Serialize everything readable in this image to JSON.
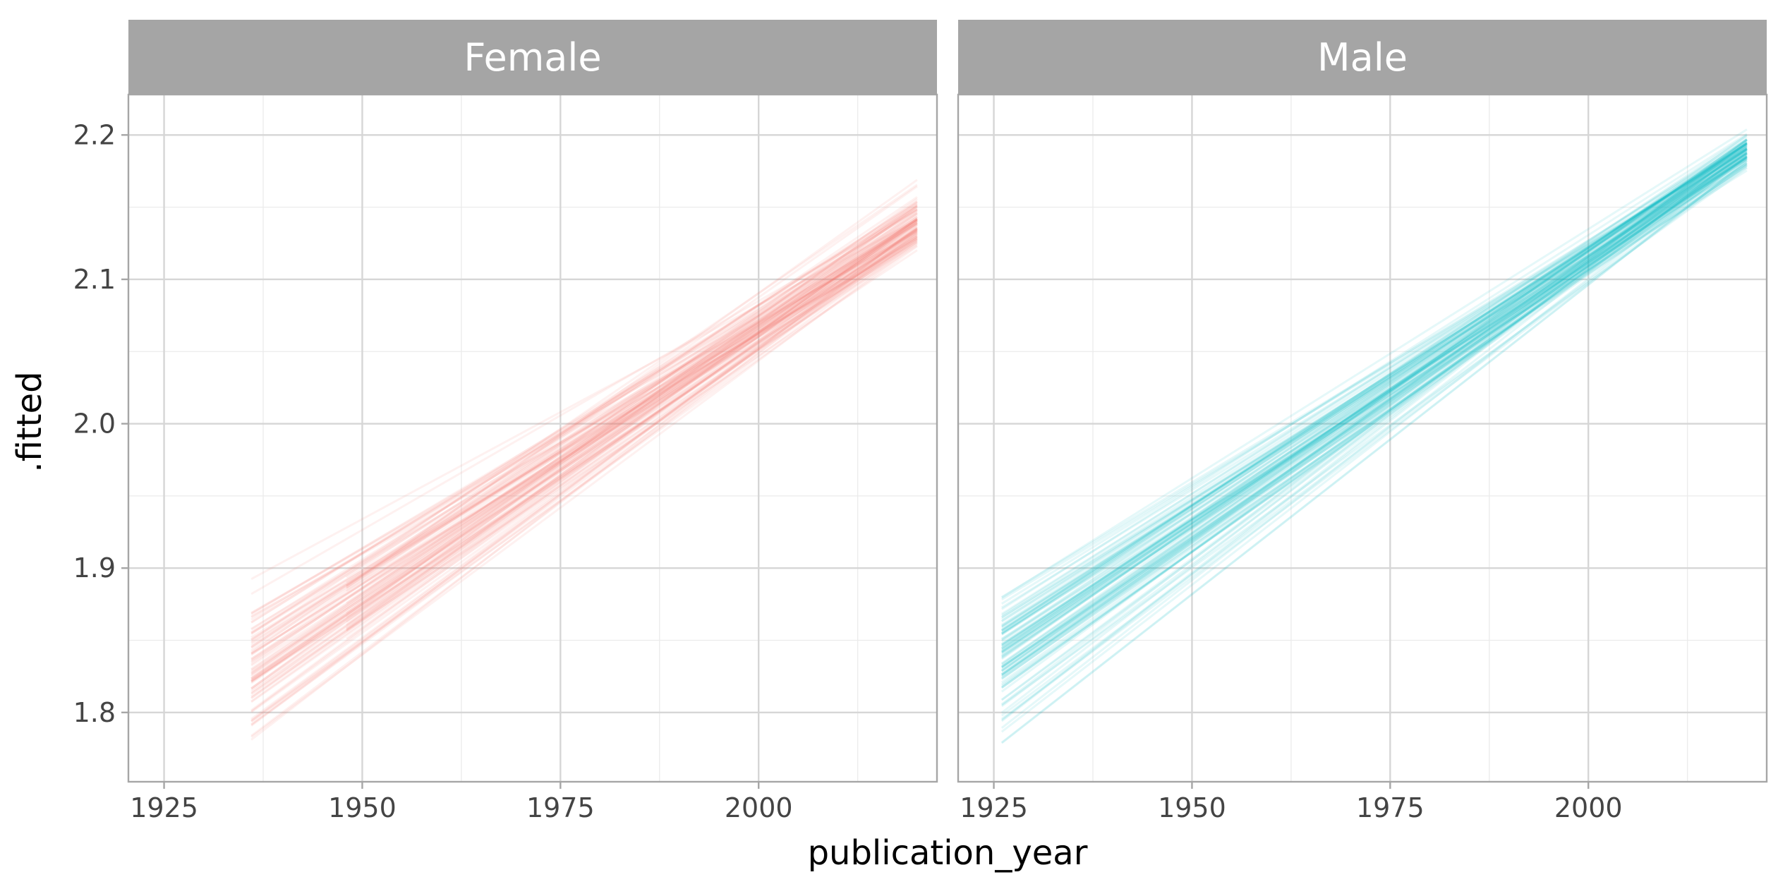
{
  "chart_data": {
    "type": "line",
    "facet_variable": "gender",
    "xlabel": "publication_year",
    "ylabel": ".fitted",
    "xlim": [
      1920.5,
      2022.5
    ],
    "ylim": [
      1.752,
      2.228
    ],
    "x_ticks": [
      1925,
      1950,
      1975,
      2000
    ],
    "y_ticks": [
      1.8,
      1.9,
      2.0,
      2.1,
      2.2
    ],
    "x_tick_labels": [
      "1925",
      "1950",
      "1975",
      "2000"
    ],
    "y_tick_labels": [
      "1.8",
      "1.9",
      "2.0",
      "2.1",
      "2.2"
    ],
    "grid": true,
    "legend": "none",
    "n_draws": 100,
    "panels": [
      {
        "name": "Female",
        "color": "#F8766D",
        "line_opacity": 0.1,
        "x": [
          1936,
          2020
        ],
        "center_y": [
          1.83,
          2.14
        ],
        "y_spread_start": 0.045,
        "y_spread_end": 0.02
      },
      {
        "name": "Male",
        "color": "#00BFC4",
        "line_opacity": 0.1,
        "x": [
          1926,
          2020
        ],
        "center_y": [
          1.838,
          2.19
        ],
        "y_spread_start": 0.045,
        "y_spread_end": 0.012
      }
    ]
  }
}
